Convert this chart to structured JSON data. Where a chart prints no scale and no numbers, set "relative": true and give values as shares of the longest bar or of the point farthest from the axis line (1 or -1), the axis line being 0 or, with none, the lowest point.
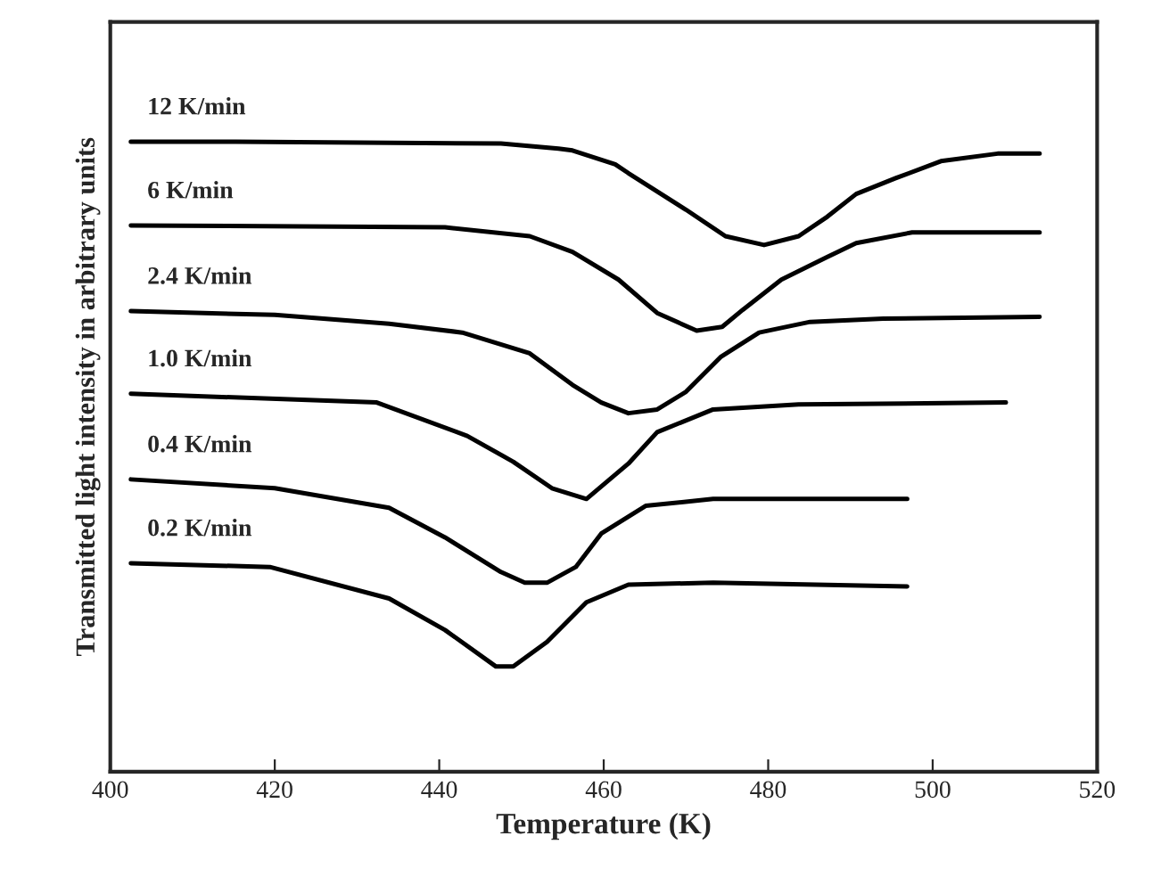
{
  "chart_data": {
    "type": "line",
    "relative": true,
    "xlabel": "Temperature (K)",
    "ylabel": "Transmitted light intensity in arbitrary units",
    "xlim": [
      400,
      520
    ],
    "xticks": [
      400,
      420,
      440,
      460,
      480,
      500,
      520
    ],
    "tick_labels": "x",
    "grid": false,
    "legend": false,
    "marker": "none",
    "line_style": "solid",
    "series": [
      {
        "name": "12 K/min",
        "color": "#000000",
        "x": [
          402.5,
          415.3,
          447.5,
          454.5,
          456.2,
          461.4,
          463.0,
          470.0,
          474.8,
          479.5,
          483.7,
          487.2,
          490.7,
          495.5,
          501.0,
          507.9,
          513.0
        ],
        "values": [
          1.0,
          1.0,
          0.997,
          0.989,
          0.986,
          0.964,
          0.95,
          0.892,
          0.85,
          0.836,
          0.85,
          0.881,
          0.917,
          0.942,
          0.969,
          0.981,
          0.981
        ]
      },
      {
        "name": "6 K/min",
        "color": "#000000",
        "x": [
          402.5,
          440.7,
          451.0,
          456.2,
          461.8,
          466.5,
          471.3,
          474.4,
          476.9,
          481.6,
          487.2,
          490.7,
          497.5,
          513.0
        ],
        "values": [
          0.867,
          0.864,
          0.85,
          0.825,
          0.781,
          0.728,
          0.7,
          0.706,
          0.733,
          0.781,
          0.817,
          0.839,
          0.856,
          0.856
        ]
      },
      {
        "name": "2.4 K/min",
        "color": "#000000",
        "x": [
          402.5,
          420.0,
          433.9,
          442.8,
          451.0,
          456.2,
          459.7,
          463.0,
          466.5,
          470.0,
          474.2,
          478.9,
          485.1,
          494.0,
          513.0
        ],
        "values": [
          0.731,
          0.725,
          0.711,
          0.697,
          0.664,
          0.614,
          0.586,
          0.569,
          0.575,
          0.603,
          0.658,
          0.697,
          0.714,
          0.719,
          0.722
        ]
      },
      {
        "name": "1.0 K/min",
        "color": "#000000",
        "x": [
          402.5,
          432.4,
          443.4,
          449.0,
          453.7,
          457.9,
          463.0,
          466.5,
          473.3,
          483.7,
          508.9
        ],
        "values": [
          0.6,
          0.586,
          0.533,
          0.492,
          0.45,
          0.433,
          0.489,
          0.539,
          0.575,
          0.583,
          0.586
        ]
      },
      {
        "name": "0.4 K/min",
        "color": "#000000",
        "x": [
          402.5,
          420.0,
          433.9,
          440.7,
          447.5,
          450.4,
          453.1,
          456.6,
          459.7,
          465.1,
          473.3,
          496.9
        ],
        "values": [
          0.464,
          0.45,
          0.419,
          0.372,
          0.317,
          0.3,
          0.3,
          0.325,
          0.378,
          0.422,
          0.433,
          0.433
        ]
      },
      {
        "name": "0.2 K/min",
        "color": "#000000",
        "x": [
          402.5,
          419.4,
          433.9,
          440.7,
          446.9,
          449.0,
          453.1,
          457.9,
          463.0,
          473.3,
          496.9
        ],
        "values": [
          0.331,
          0.325,
          0.275,
          0.225,
          0.167,
          0.167,
          0.206,
          0.269,
          0.297,
          0.3,
          0.294
        ]
      }
    ]
  }
}
